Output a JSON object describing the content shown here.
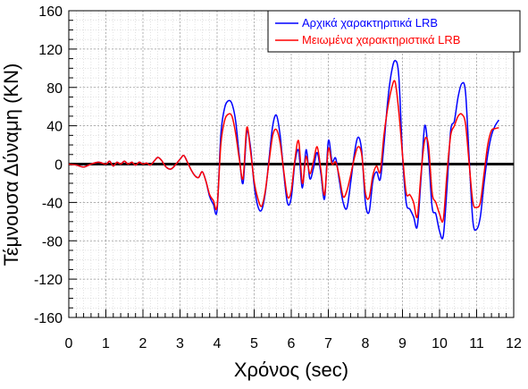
{
  "chart_data": {
    "type": "line",
    "xlabel": "Χρόνος (sec)",
    "ylabel": "Τέμνουσα Δύναμη (KN)",
    "xlim": [
      0,
      12
    ],
    "ylim": [
      -160,
      160
    ],
    "x_ticks": [
      0,
      1,
      2,
      3,
      4,
      5,
      6,
      7,
      8,
      9,
      10,
      11,
      12
    ],
    "y_ticks": [
      160,
      120,
      80,
      40,
      0,
      -40,
      -80,
      -120,
      -160
    ],
    "x_minor_step": 0.2,
    "y_minor_step": 10,
    "grid": true,
    "zero_line": true,
    "legend_position": "top-right",
    "series": [
      {
        "name": "Αρχικά χαρακτηριτικά LRB",
        "color": "#0000ff",
        "x": [
          0,
          0.2,
          0.4,
          0.6,
          0.8,
          1.0,
          1.1,
          1.2,
          1.3,
          1.4,
          1.5,
          1.6,
          1.7,
          1.8,
          1.9,
          2.0,
          2.1,
          2.2,
          2.3,
          2.4,
          2.5,
          2.6,
          2.7,
          2.8,
          3.0,
          3.1,
          3.2,
          3.3,
          3.4,
          3.5,
          3.6,
          3.7,
          3.8,
          3.9,
          4.0,
          4.1,
          4.2,
          4.3,
          4.4,
          4.5,
          4.6,
          4.7,
          4.8,
          4.9,
          5.0,
          5.1,
          5.2,
          5.3,
          5.4,
          5.5,
          5.6,
          5.7,
          5.8,
          5.9,
          6.0,
          6.1,
          6.2,
          6.3,
          6.4,
          6.5,
          6.6,
          6.7,
          6.8,
          6.9,
          7.0,
          7.1,
          7.2,
          7.3,
          7.4,
          7.5,
          7.6,
          7.7,
          7.8,
          7.9,
          8.0,
          8.1,
          8.2,
          8.3,
          8.4,
          8.5,
          8.6,
          8.7,
          8.8,
          8.9,
          9.0,
          9.1,
          9.2,
          9.3,
          9.4,
          9.5,
          9.6,
          9.7,
          9.8,
          9.9,
          10.0,
          10.1,
          10.2,
          10.3,
          10.4,
          10.5,
          10.6,
          10.7,
          10.8,
          10.9,
          11.0,
          11.1,
          11.2,
          11.3,
          11.4,
          11.5,
          11.6
        ],
        "y": [
          0,
          -1,
          -3,
          0,
          2,
          0,
          3,
          -2,
          2,
          0,
          3,
          0,
          2,
          -1,
          2,
          0,
          1,
          -1,
          3,
          7,
          4,
          -2,
          -5,
          -4,
          5,
          9,
          2,
          -6,
          -12,
          -14,
          -8,
          -18,
          -34,
          -42,
          -48,
          30,
          58,
          66,
          63,
          45,
          8,
          -20,
          33,
          18,
          -22,
          -44,
          -48,
          -30,
          5,
          40,
          51,
          30,
          -10,
          -41,
          -35,
          2,
          14,
          -25,
          15,
          -15,
          -4,
          12,
          -10,
          -36,
          24,
          3,
          6,
          -18,
          -40,
          -46,
          -20,
          10,
          28,
          14,
          -40,
          -50,
          -18,
          -8,
          -16,
          20,
          65,
          95,
          108,
          92,
          10,
          -40,
          -47,
          -55,
          -65,
          -15,
          40,
          10,
          -45,
          -52,
          -70,
          -75,
          -25,
          35,
          45,
          70,
          84,
          75,
          5,
          -60,
          -68,
          -55,
          -20,
          10,
          30,
          40,
          46
        ]
      },
      {
        "name": "Μειωμένα χαρακτηριστικά LRB",
        "color": "#ff0000",
        "x": [
          0,
          0.2,
          0.4,
          0.6,
          0.8,
          1.0,
          1.1,
          1.2,
          1.3,
          1.4,
          1.5,
          1.6,
          1.7,
          1.8,
          1.9,
          2.0,
          2.1,
          2.2,
          2.3,
          2.4,
          2.5,
          2.6,
          2.7,
          2.8,
          3.0,
          3.1,
          3.2,
          3.3,
          3.4,
          3.5,
          3.6,
          3.7,
          3.8,
          3.9,
          4.0,
          4.1,
          4.2,
          4.3,
          4.4,
          4.5,
          4.6,
          4.7,
          4.8,
          4.9,
          5.0,
          5.1,
          5.2,
          5.3,
          5.4,
          5.5,
          5.6,
          5.7,
          5.8,
          5.9,
          6.0,
          6.1,
          6.2,
          6.3,
          6.4,
          6.5,
          6.6,
          6.7,
          6.8,
          6.9,
          7.0,
          7.1,
          7.2,
          7.3,
          7.4,
          7.5,
          7.6,
          7.7,
          7.8,
          7.9,
          8.0,
          8.1,
          8.2,
          8.3,
          8.4,
          8.5,
          8.6,
          8.7,
          8.8,
          8.9,
          9.0,
          9.1,
          9.2,
          9.3,
          9.4,
          9.5,
          9.6,
          9.7,
          9.8,
          9.9,
          10.0,
          10.1,
          10.2,
          10.3,
          10.4,
          10.5,
          10.6,
          10.7,
          10.8,
          10.9,
          11.0,
          11.1,
          11.2,
          11.3,
          11.4,
          11.5,
          11.6
        ],
        "y": [
          0,
          -1,
          -3,
          0,
          2,
          0,
          3,
          -2,
          2,
          0,
          3,
          0,
          2,
          -1,
          2,
          0,
          1,
          -1,
          3,
          7,
          4,
          -2,
          -5,
          -4,
          5,
          9,
          2,
          -6,
          -12,
          -14,
          -8,
          -18,
          -32,
          -38,
          -44,
          20,
          45,
          52,
          50,
          32,
          5,
          -15,
          38,
          14,
          -18,
          -36,
          -44,
          -28,
          2,
          30,
          36,
          22,
          -8,
          -34,
          -28,
          5,
          24,
          -20,
          8,
          -10,
          3,
          18,
          -6,
          -32,
          16,
          0,
          2,
          -14,
          -34,
          -28,
          -12,
          6,
          18,
          10,
          -30,
          -35,
          -12,
          -2,
          -8,
          30,
          58,
          78,
          86,
          55,
          10,
          -30,
          -32,
          -40,
          -55,
          -10,
          25,
          20,
          -30,
          -40,
          -52,
          -58,
          -10,
          30,
          40,
          50,
          52,
          42,
          0,
          -40,
          -45,
          -40,
          -10,
          20,
          35,
          37,
          38
        ]
      }
    ]
  }
}
